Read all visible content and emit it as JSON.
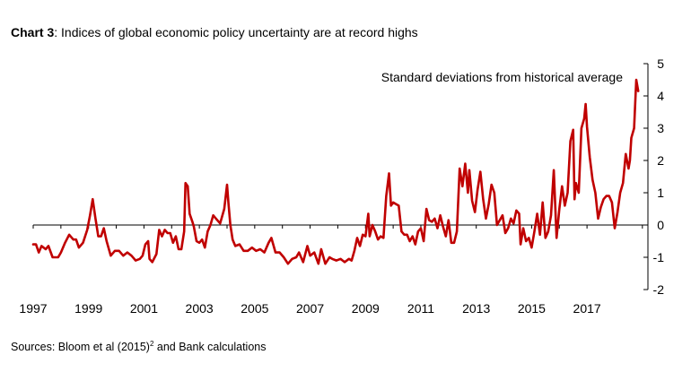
{
  "title": {
    "prefix": "Chart 3",
    "text": ":  Indices of global economic policy uncertainty are at record highs"
  },
  "source": {
    "prefix": "Sources:  Bloom et al (2015)",
    "superscript": "2",
    "suffix": " and Bank calculations"
  },
  "chart_data": {
    "type": "line",
    "ylabel": "Standard deviations from historical average",
    "ylim": [
      -2,
      5
    ],
    "yticks": [
      5,
      4,
      3,
      2,
      1,
      0,
      -1,
      -2
    ],
    "xlim": [
      1997,
      2019.2
    ],
    "xticks": [
      1997,
      1999,
      2001,
      2003,
      2005,
      2007,
      2009,
      2011,
      2013,
      2015,
      2017
    ],
    "line_color": "#c00000",
    "grid": false,
    "series": [
      {
        "points": [
          [
            1997.0,
            -0.6
          ],
          [
            1997.1,
            -0.6
          ],
          [
            1997.2,
            -0.85
          ],
          [
            1997.3,
            -0.65
          ],
          [
            1997.45,
            -0.75
          ],
          [
            1997.55,
            -0.65
          ],
          [
            1997.7,
            -1.0
          ],
          [
            1997.9,
            -1.0
          ],
          [
            1998.0,
            -0.85
          ],
          [
            1998.15,
            -0.55
          ],
          [
            1998.3,
            -0.3
          ],
          [
            1998.45,
            -0.45
          ],
          [
            1998.55,
            -0.45
          ],
          [
            1998.65,
            -0.7
          ],
          [
            1998.8,
            -0.55
          ],
          [
            1998.95,
            -0.15
          ],
          [
            1999.05,
            0.3
          ],
          [
            1999.15,
            0.8
          ],
          [
            1999.25,
            0.2
          ],
          [
            1999.35,
            -0.35
          ],
          [
            1999.45,
            -0.35
          ],
          [
            1999.55,
            -0.1
          ],
          [
            1999.65,
            -0.5
          ],
          [
            1999.8,
            -0.95
          ],
          [
            1999.95,
            -0.8
          ],
          [
            2000.1,
            -0.8
          ],
          [
            2000.25,
            -0.95
          ],
          [
            2000.4,
            -0.85
          ],
          [
            2000.55,
            -0.95
          ],
          [
            2000.7,
            -1.1
          ],
          [
            2000.85,
            -1.05
          ],
          [
            2000.95,
            -0.95
          ],
          [
            2001.05,
            -0.6
          ],
          [
            2001.15,
            -0.5
          ],
          [
            2001.2,
            -1.05
          ],
          [
            2001.3,
            -1.15
          ],
          [
            2001.45,
            -0.9
          ],
          [
            2001.55,
            -0.15
          ],
          [
            2001.65,
            -0.35
          ],
          [
            2001.75,
            -0.15
          ],
          [
            2001.85,
            -0.25
          ],
          [
            2001.95,
            -0.25
          ],
          [
            2002.05,
            -0.55
          ],
          [
            2002.15,
            -0.35
          ],
          [
            2002.25,
            -0.75
          ],
          [
            2002.35,
            -0.75
          ],
          [
            2002.45,
            -0.2
          ],
          [
            2002.5,
            1.3
          ],
          [
            2002.58,
            1.2
          ],
          [
            2002.65,
            0.35
          ],
          [
            2002.75,
            0.1
          ],
          [
            2002.8,
            -0.05
          ],
          [
            2002.9,
            -0.5
          ],
          [
            2003.0,
            -0.55
          ],
          [
            2003.1,
            -0.45
          ],
          [
            2003.2,
            -0.7
          ],
          [
            2003.3,
            -0.2
          ],
          [
            2003.4,
            0.0
          ],
          [
            2003.5,
            0.3
          ],
          [
            2003.6,
            0.2
          ],
          [
            2003.75,
            0.05
          ],
          [
            2003.9,
            0.5
          ],
          [
            2004.0,
            1.25
          ],
          [
            2004.05,
            0.7
          ],
          [
            2004.12,
            0.0
          ],
          [
            2004.2,
            -0.45
          ],
          [
            2004.3,
            -0.65
          ],
          [
            2004.45,
            -0.6
          ],
          [
            2004.6,
            -0.8
          ],
          [
            2004.75,
            -0.8
          ],
          [
            2004.9,
            -0.7
          ],
          [
            2005.05,
            -0.8
          ],
          [
            2005.2,
            -0.75
          ],
          [
            2005.35,
            -0.85
          ],
          [
            2005.5,
            -0.55
          ],
          [
            2005.6,
            -0.4
          ],
          [
            2005.75,
            -0.85
          ],
          [
            2005.9,
            -0.85
          ],
          [
            2006.05,
            -1.0
          ],
          [
            2006.2,
            -1.2
          ],
          [
            2006.35,
            -1.05
          ],
          [
            2006.5,
            -1.0
          ],
          [
            2006.6,
            -0.85
          ],
          [
            2006.75,
            -1.15
          ],
          [
            2006.9,
            -0.65
          ],
          [
            2007.0,
            -0.95
          ],
          [
            2007.15,
            -0.85
          ],
          [
            2007.3,
            -1.2
          ],
          [
            2007.4,
            -0.75
          ],
          [
            2007.55,
            -1.2
          ],
          [
            2007.7,
            -1.0
          ],
          [
            2007.8,
            -1.05
          ],
          [
            2007.95,
            -1.1
          ],
          [
            2008.1,
            -1.05
          ],
          [
            2008.25,
            -1.15
          ],
          [
            2008.4,
            -1.05
          ],
          [
            2008.5,
            -1.1
          ],
          [
            2008.6,
            -0.8
          ],
          [
            2008.7,
            -0.4
          ],
          [
            2008.8,
            -0.65
          ],
          [
            2008.9,
            -0.3
          ],
          [
            2009.0,
            -0.35
          ],
          [
            2009.1,
            0.35
          ],
          [
            2009.15,
            -0.35
          ],
          [
            2009.25,
            0.0
          ],
          [
            2009.35,
            -0.2
          ],
          [
            2009.45,
            -0.45
          ],
          [
            2009.55,
            -0.35
          ],
          [
            2009.65,
            -0.4
          ],
          [
            2009.75,
            0.9
          ],
          [
            2009.85,
            1.6
          ],
          [
            2009.92,
            0.6
          ],
          [
            2010.0,
            0.7
          ],
          [
            2010.1,
            0.65
          ],
          [
            2010.2,
            0.6
          ],
          [
            2010.3,
            -0.2
          ],
          [
            2010.4,
            -0.3
          ],
          [
            2010.5,
            -0.3
          ],
          [
            2010.6,
            -0.5
          ],
          [
            2010.7,
            -0.35
          ],
          [
            2010.8,
            -0.6
          ],
          [
            2010.9,
            -0.2
          ],
          [
            2011.0,
            -0.1
          ],
          [
            2011.1,
            -0.5
          ],
          [
            2011.2,
            0.5
          ],
          [
            2011.3,
            0.15
          ],
          [
            2011.4,
            0.1
          ],
          [
            2011.5,
            0.2
          ],
          [
            2011.6,
            -0.1
          ],
          [
            2011.7,
            0.3
          ],
          [
            2011.8,
            -0.05
          ],
          [
            2011.9,
            -0.35
          ],
          [
            2012.0,
            0.15
          ],
          [
            2012.1,
            -0.55
          ],
          [
            2012.2,
            -0.55
          ],
          [
            2012.3,
            -0.2
          ],
          [
            2012.4,
            1.75
          ],
          [
            2012.5,
            1.2
          ],
          [
            2012.6,
            1.9
          ],
          [
            2012.7,
            1.0
          ],
          [
            2012.75,
            1.7
          ],
          [
            2012.85,
            0.75
          ],
          [
            2012.95,
            0.4
          ],
          [
            2013.05,
            1.1
          ],
          [
            2013.15,
            1.65
          ],
          [
            2013.25,
            0.8
          ],
          [
            2013.35,
            0.2
          ],
          [
            2013.45,
            0.65
          ],
          [
            2013.55,
            1.25
          ],
          [
            2013.65,
            1.0
          ],
          [
            2013.75,
            0.0
          ],
          [
            2013.85,
            0.15
          ],
          [
            2013.95,
            0.3
          ],
          [
            2014.05,
            -0.25
          ],
          [
            2014.15,
            -0.1
          ],
          [
            2014.25,
            0.2
          ],
          [
            2014.35,
            0.05
          ],
          [
            2014.45,
            0.45
          ],
          [
            2014.55,
            0.35
          ],
          [
            2014.6,
            -0.6
          ],
          [
            2014.7,
            -0.1
          ],
          [
            2014.8,
            -0.5
          ],
          [
            2014.9,
            -0.4
          ],
          [
            2015.0,
            -0.7
          ],
          [
            2015.1,
            -0.2
          ],
          [
            2015.2,
            0.35
          ],
          [
            2015.3,
            -0.3
          ],
          [
            2015.4,
            0.7
          ],
          [
            2015.5,
            -0.4
          ],
          [
            2015.6,
            -0.2
          ],
          [
            2015.7,
            0.3
          ],
          [
            2015.8,
            1.7
          ],
          [
            2015.9,
            -0.4
          ],
          [
            2016.0,
            0.5
          ],
          [
            2016.1,
            1.2
          ],
          [
            2016.2,
            0.6
          ],
          [
            2016.3,
            1.0
          ],
          [
            2016.4,
            2.6
          ],
          [
            2016.5,
            2.95
          ],
          [
            2016.55,
            0.8
          ],
          [
            2016.6,
            1.3
          ],
          [
            2016.7,
            1.0
          ],
          [
            2016.8,
            3.0
          ],
          [
            2016.9,
            3.3
          ],
          [
            2016.95,
            3.75
          ],
          [
            2017.0,
            3.05
          ],
          [
            2017.1,
            2.1
          ],
          [
            2017.2,
            1.4
          ],
          [
            2017.3,
            1.0
          ],
          [
            2017.4,
            0.2
          ],
          [
            2017.5,
            0.55
          ],
          [
            2017.6,
            0.8
          ],
          [
            2017.7,
            0.9
          ],
          [
            2017.8,
            0.9
          ],
          [
            2017.9,
            0.7
          ],
          [
            2018.0,
            -0.1
          ],
          [
            2018.1,
            0.4
          ],
          [
            2018.2,
            1.0
          ],
          [
            2018.3,
            1.3
          ],
          [
            2018.4,
            2.2
          ],
          [
            2018.5,
            1.75
          ],
          [
            2018.55,
            2.0
          ],
          [
            2018.6,
            2.7
          ],
          [
            2018.7,
            3.0
          ],
          [
            2018.78,
            4.5
          ],
          [
            2018.85,
            4.15
          ]
        ]
      }
    ]
  }
}
